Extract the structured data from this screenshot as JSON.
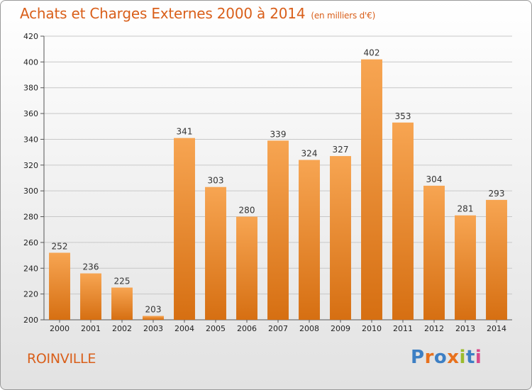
{
  "title": "Achats et Charges Externes 2000 à 2014",
  "unit": "(en milliers d'€)",
  "commune": "ROINVILLE",
  "logo": {
    "text": "Proxiti",
    "colors": [
      "#3d7fc4",
      "#e8711d",
      "#3d7fc4",
      "#e8711d",
      "#9bbb2d",
      "#3d7fc4",
      "#d94a8a"
    ]
  },
  "colors": {
    "bar_top": "#f7a552",
    "bar_bottom": "#d66f12",
    "text_accent": "#d95f1a"
  },
  "chart_data": {
    "type": "bar",
    "title": "Achats et Charges Externes 2000 à 2014",
    "categories": [
      "2000",
      "2001",
      "2002",
      "2003",
      "2004",
      "2005",
      "2006",
      "2007",
      "2008",
      "2009",
      "2010",
      "2011",
      "2012",
      "2013",
      "2014"
    ],
    "values": [
      252,
      236,
      225,
      203,
      341,
      303,
      280,
      339,
      324,
      327,
      402,
      353,
      304,
      281,
      293
    ],
    "ylim": [
      200,
      420
    ],
    "yticks": [
      200,
      220,
      240,
      260,
      280,
      300,
      320,
      340,
      360,
      380,
      400,
      420
    ],
    "grid": true,
    "data_labels": true
  }
}
